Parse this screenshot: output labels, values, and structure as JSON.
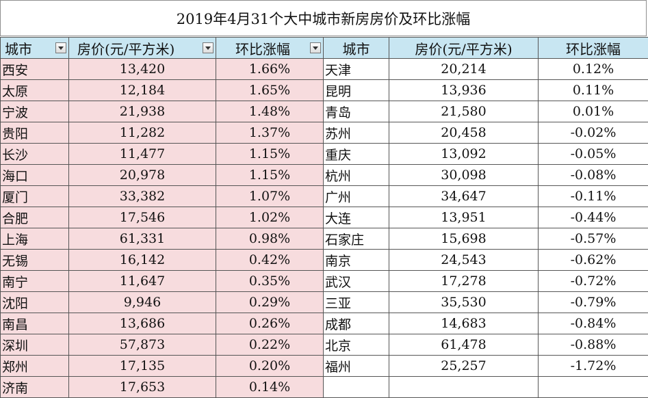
{
  "title": "2019年4月31个大中城市新房房价及环比涨幅",
  "headers": {
    "city": "城市",
    "price": "房价(元/平方米)",
    "change": "环比涨幅"
  },
  "left_rows": [
    {
      "city": "西安",
      "price": "13,420",
      "change": "1.66%"
    },
    {
      "city": "太原",
      "price": "12,184",
      "change": "1.65%"
    },
    {
      "city": "宁波",
      "price": "21,938",
      "change": "1.48%"
    },
    {
      "city": "贵阳",
      "price": "11,282",
      "change": "1.37%"
    },
    {
      "city": "长沙",
      "price": "11,477",
      "change": "1.15%"
    },
    {
      "city": "海口",
      "price": "20,978",
      "change": "1.15%"
    },
    {
      "city": "厦门",
      "price": "33,382",
      "change": "1.07%"
    },
    {
      "city": "合肥",
      "price": "17,546",
      "change": "1.02%"
    },
    {
      "city": "上海",
      "price": "61,331",
      "change": "0.98%"
    },
    {
      "city": "无锡",
      "price": "16,142",
      "change": "0.42%"
    },
    {
      "city": "南宁",
      "price": "11,647",
      "change": "0.35%"
    },
    {
      "city": "沈阳",
      "price": "9,946",
      "change": "0.29%"
    },
    {
      "city": "南昌",
      "price": "13,686",
      "change": "0.26%"
    },
    {
      "city": "深圳",
      "price": "57,873",
      "change": "0.22%"
    },
    {
      "city": "郑州",
      "price": "17,135",
      "change": "0.20%"
    },
    {
      "city": "济南",
      "price": "17,653",
      "change": "0.14%"
    }
  ],
  "right_rows": [
    {
      "city": "天津",
      "price": "20,214",
      "change": "0.12%"
    },
    {
      "city": "昆明",
      "price": "13,936",
      "change": "0.11%"
    },
    {
      "city": "青岛",
      "price": "21,580",
      "change": "0.01%"
    },
    {
      "city": "苏州",
      "price": "20,458",
      "change": "-0.02%"
    },
    {
      "city": "重庆",
      "price": "13,092",
      "change": "-0.05%"
    },
    {
      "city": "杭州",
      "price": "30,098",
      "change": "-0.08%"
    },
    {
      "city": "广州",
      "price": "34,647",
      "change": "-0.11%"
    },
    {
      "city": "大连",
      "price": "13,951",
      "change": "-0.44%"
    },
    {
      "city": "石家庄",
      "price": "15,698",
      "change": "-0.57%"
    },
    {
      "city": "南京",
      "price": "24,543",
      "change": "-0.62%"
    },
    {
      "city": "武汉",
      "price": "17,278",
      "change": "-0.72%"
    },
    {
      "city": "三亚",
      "price": "35,530",
      "change": "-0.79%"
    },
    {
      "city": "成都",
      "price": "14,683",
      "change": "-0.84%"
    },
    {
      "city": "北京",
      "price": "61,478",
      "change": "-0.88%"
    },
    {
      "city": "福州",
      "price": "25,257",
      "change": "-1.72%"
    }
  ],
  "colors": {
    "header_bg": "#c8e6f2",
    "left_row_bg": "#f7dcde",
    "right_row_bg": "#ffffff"
  },
  "icons": {
    "filter": "filter-dropdown-icon"
  }
}
